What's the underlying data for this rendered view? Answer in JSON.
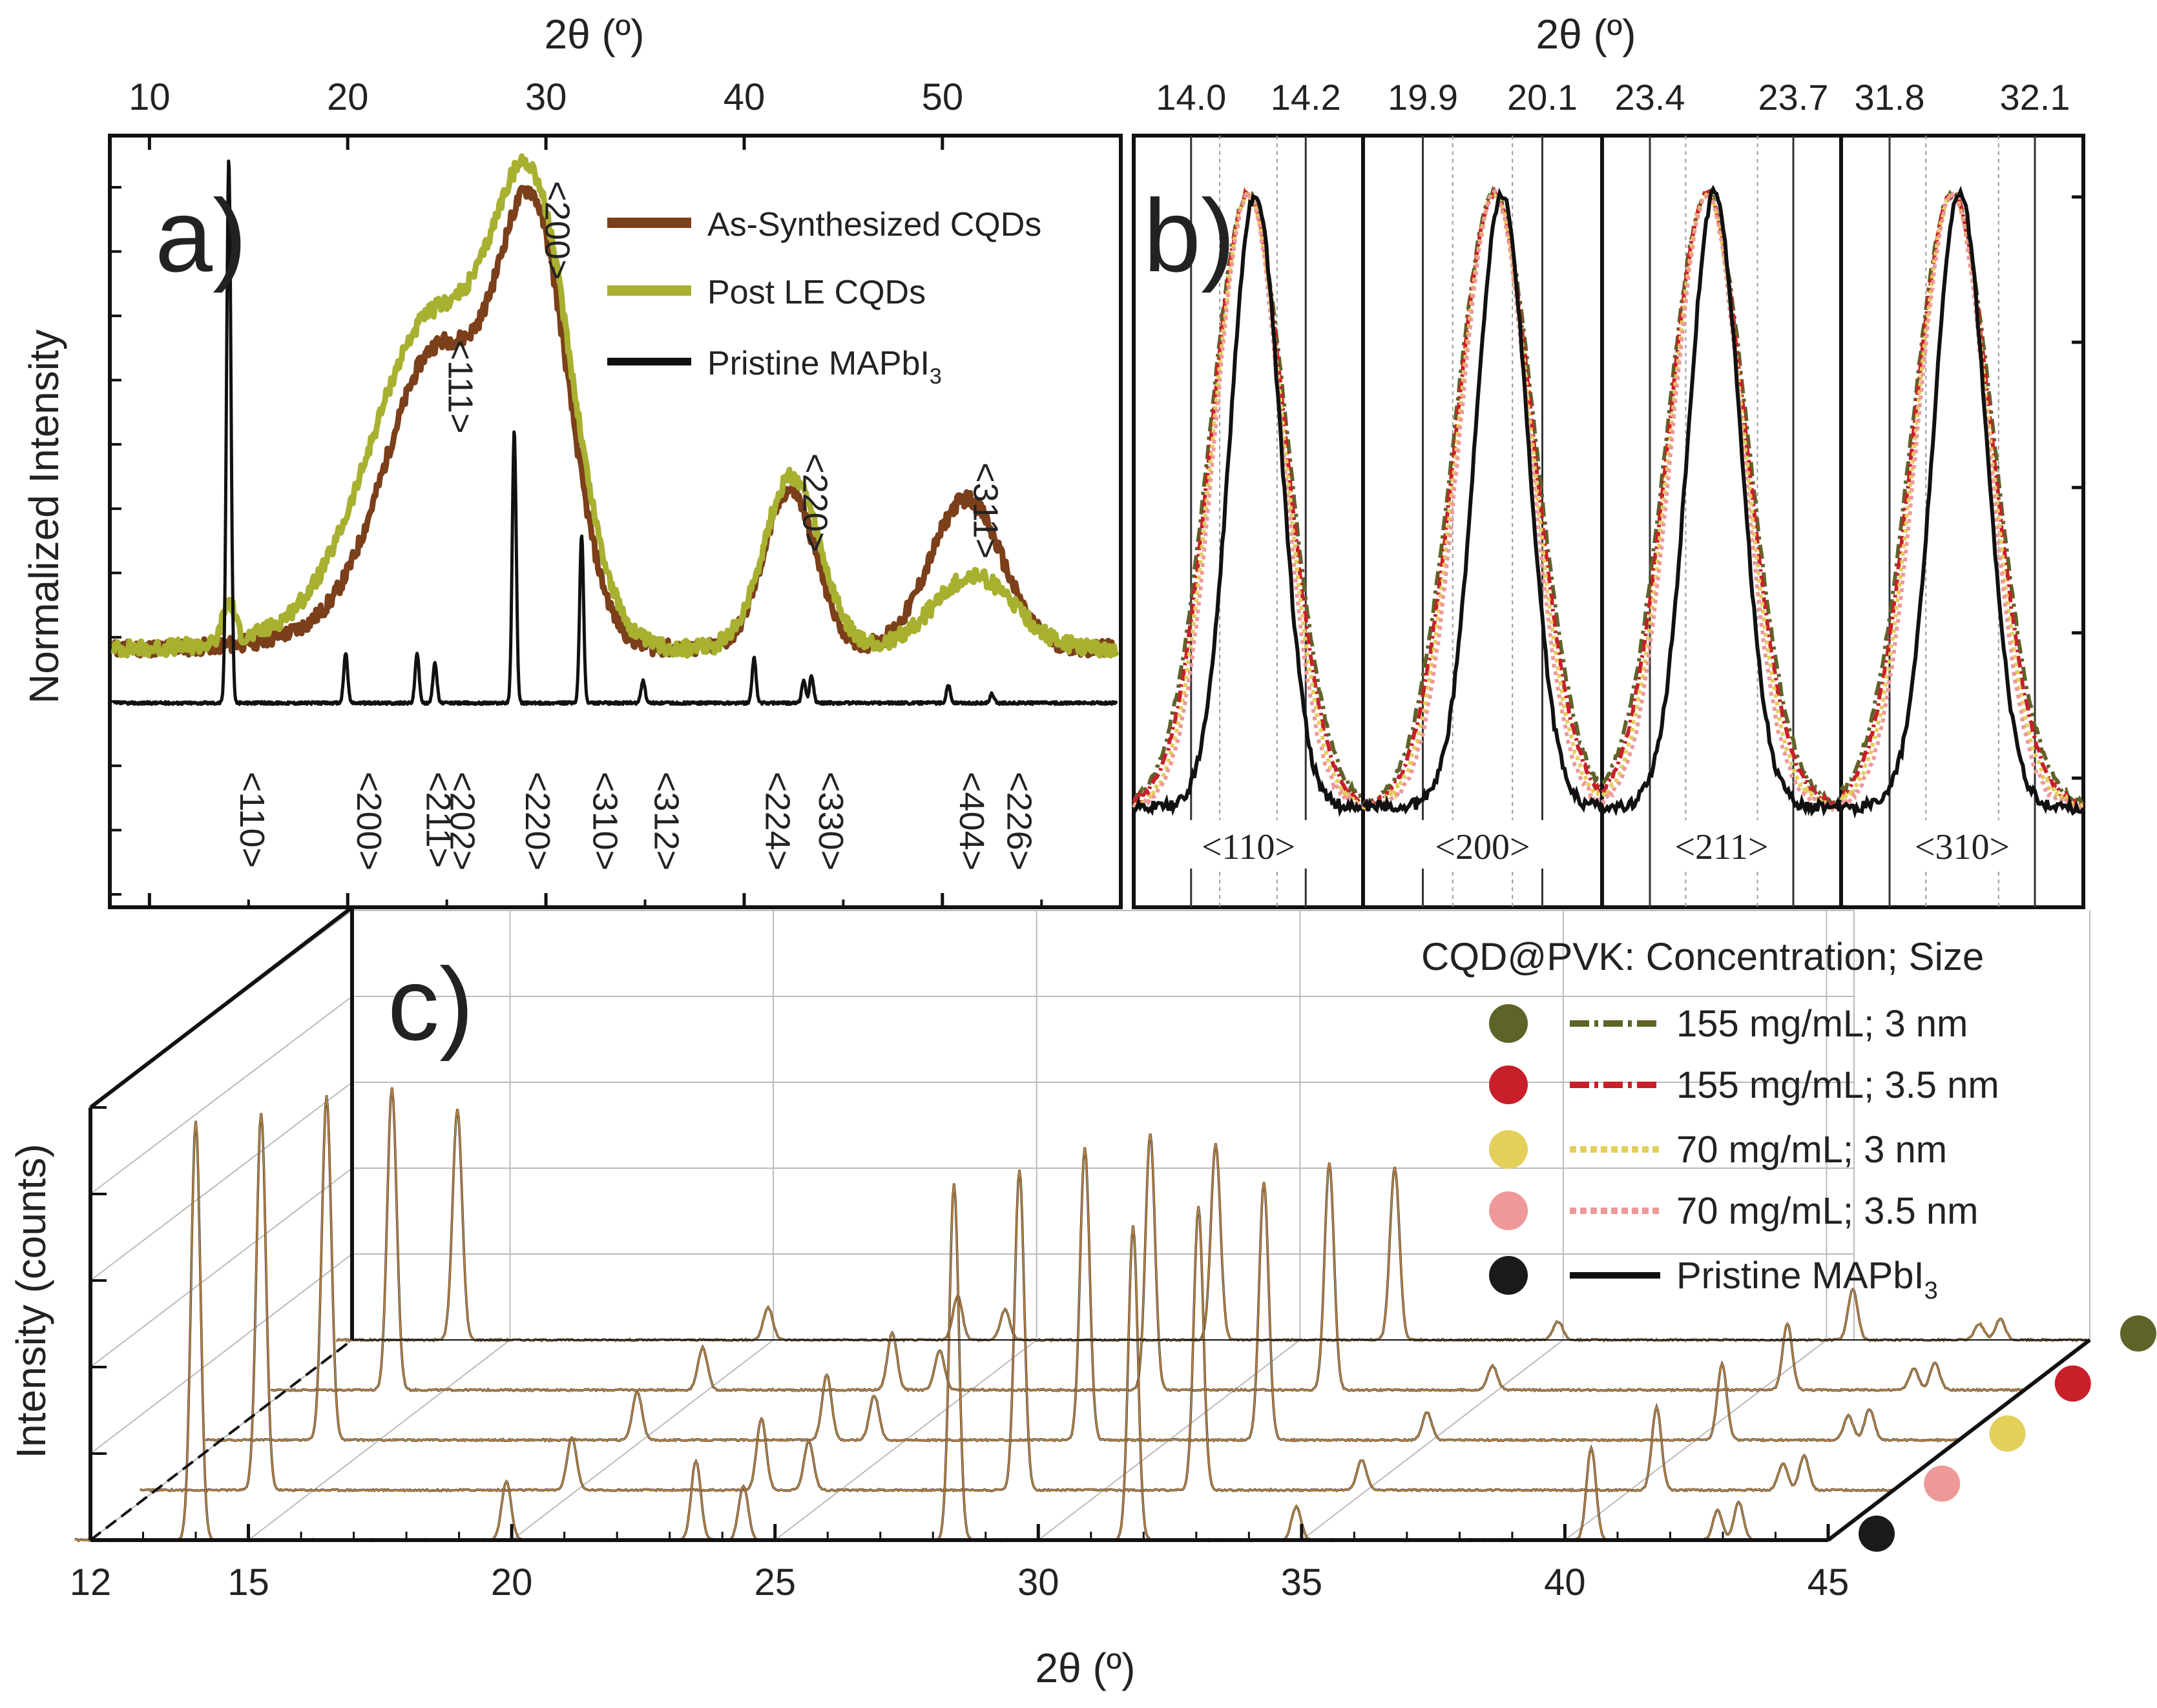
{
  "top_axis_title": "2θ (º)",
  "colors": {
    "as_synth": "#7B3F1A",
    "post_le": "#A8B030",
    "pristine": "#111111",
    "dot_155_3": "#5F6328",
    "dot_155_35": "#C81F2A",
    "dot_70_3": "#E3CF5A",
    "dot_70_35": "#EE9898",
    "dot_pristine": "#1A1A1A",
    "waterfall": "#C8904A"
  },
  "chart_data": [
    {
      "type": "line",
      "panel_label": "a)",
      "title": "",
      "xlabel": "2θ (º)",
      "ylabel": "Normalized Intensity",
      "xlim": [
        8,
        59
      ],
      "ylim": [
        -0.45,
        1.25
      ],
      "x_ticks": [
        "10",
        "20",
        "30",
        "40",
        "50"
      ],
      "legend": [
        {
          "label": "As-Synthesized CQDs",
          "key": "as_synth"
        },
        {
          "label": "Post LE CQDs",
          "key": "post_le"
        },
        {
          "label": "Pristine MAPbI",
          "sub": "3",
          "key": "pristine"
        }
      ],
      "series": [
        {
          "name": "As-Synthesized CQDs",
          "baseline": 0.12,
          "peaks": [
            [
              24.5,
              0.6,
              2.5
            ],
            [
              29.4,
              0.9,
              1.8
            ],
            [
              42.3,
              0.35,
              1.3
            ],
            [
              51.2,
              0.33,
              1.8
            ]
          ]
        },
        {
          "name": "Post LE CQDs",
          "baseline": 0.12,
          "peaks": [
            [
              14.0,
              0.09,
              0.3
            ],
            [
              24.3,
              0.62,
              2.9
            ],
            [
              29.4,
              0.9,
              2.0
            ],
            [
              42.4,
              0.38,
              1.4
            ],
            [
              51.6,
              0.16,
              2.0
            ]
          ]
        },
        {
          "name": "Pristine MAPbI3",
          "baseline": 0.0,
          "peaks": [
            [
              14.0,
              1.2,
              0.11
            ],
            [
              19.9,
              0.11,
              0.1
            ],
            [
              23.5,
              0.11,
              0.1
            ],
            [
              24.4,
              0.09,
              0.1
            ],
            [
              28.4,
              0.6,
              0.1
            ],
            [
              31.8,
              0.37,
              0.1
            ],
            [
              34.9,
              0.05,
              0.1
            ],
            [
              40.5,
              0.1,
              0.1
            ],
            [
              43.0,
              0.05,
              0.1
            ],
            [
              43.4,
              0.06,
              0.1
            ],
            [
              50.3,
              0.04,
              0.1
            ],
            [
              52.5,
              0.02,
              0.1
            ]
          ]
        }
      ],
      "peak_labels_top": [
        {
          "x": 24.5,
          "y": 0.8,
          "text": "<111>"
        },
        {
          "x": 29.4,
          "y": 1.15,
          "text": "<200>"
        },
        {
          "x": 42.4,
          "y": 0.55,
          "text": "<220>"
        },
        {
          "x": 51.0,
          "y": 0.53,
          "text": "<311>"
        }
      ],
      "peak_labels_bottom": [
        {
          "x": 14.0,
          "text": "<110>"
        },
        {
          "x": 19.9,
          "text": "<200>"
        },
        {
          "x": 23.4,
          "text": "<211>"
        },
        {
          "x": 24.6,
          "text": "<202>"
        },
        {
          "x": 28.4,
          "text": "<220>"
        },
        {
          "x": 31.8,
          "text": "<310>"
        },
        {
          "x": 34.9,
          "text": "<312>"
        },
        {
          "x": 40.5,
          "text": "<224>"
        },
        {
          "x": 43.2,
          "text": "<330>"
        },
        {
          "x": 50.3,
          "text": "<404>"
        },
        {
          "x": 52.7,
          "text": "<226>"
        }
      ]
    },
    {
      "type": "line",
      "panel_label": "b)",
      "xlabel": "2θ (º)",
      "ylabel": "",
      "subpanels": [
        {
          "label": "<110>",
          "tick_labels": [
            "14.0",
            "14.2"
          ],
          "xlim": [
            13.9,
            14.3
          ],
          "ticks": [
            14.0,
            14.2
          ],
          "center": 14.1
        },
        {
          "label": "<200>",
          "tick_labels": [
            "19.9",
            "20.1"
          ],
          "xlim": [
            19.8,
            20.2
          ],
          "ticks": [
            19.9,
            20.1
          ],
          "center": 20.02
        },
        {
          "label": "<211>",
          "tick_labels": [
            "23.4",
            "23.7"
          ],
          "xlim": [
            23.3,
            23.8
          ],
          "ticks": [
            23.4,
            23.7
          ],
          "center": 23.52
        },
        {
          "label": "<310>",
          "tick_labels": [
            "31.8",
            "32.1"
          ],
          "xlim": [
            31.7,
            32.2
          ],
          "ticks": [
            31.8,
            32.1
          ],
          "center": 31.93
        }
      ],
      "series": [
        {
          "name": "155 mg/mL; 3 nm",
          "style": "dash-dot",
          "key": "dot_155_3"
        },
        {
          "name": "155 mg/mL; 3.5 nm",
          "style": "dash-dot",
          "key": "dot_155_35"
        },
        {
          "name": "70 mg/mL; 3 nm",
          "style": "dotted",
          "key": "dot_70_3"
        },
        {
          "name": "70 mg/mL; 3.5 nm",
          "style": "dotted",
          "key": "dot_70_35"
        },
        {
          "name": "Pristine MAPbI3",
          "style": "solid",
          "key": "pristine"
        }
      ]
    },
    {
      "type": "line",
      "panel_label": "c)",
      "xlabel": "2θ (º)",
      "ylabel": "Intensity (counts)",
      "xlim": [
        12,
        45
      ],
      "x_ticks": [
        "12",
        "15",
        "20",
        "25",
        "30",
        "35",
        "40",
        "45"
      ],
      "legend_title": "CQD@PVK: Concentration; Size",
      "legend": [
        {
          "label": "155 mg/mL; 3 nm",
          "key": "dot_155_3",
          "style": "dash-dot"
        },
        {
          "label": "155 mg/mL; 3.5 nm",
          "key": "dot_155_35",
          "style": "dash-dot"
        },
        {
          "label": "70 mg/mL; 3 nm",
          "key": "dot_70_3",
          "style": "dotted"
        },
        {
          "label": "70 mg/mL; 3.5 nm",
          "key": "dot_70_35",
          "style": "dotted"
        },
        {
          "label": "Pristine MAPbI",
          "sub": "3",
          "key": "dot_pristine",
          "style": "solid"
        }
      ],
      "peaks": [
        [
          14.0,
          1.0
        ],
        [
          19.9,
          0.14
        ],
        [
          23.5,
          0.19
        ],
        [
          24.4,
          0.13
        ],
        [
          28.4,
          0.85
        ],
        [
          31.8,
          0.75
        ],
        [
          34.9,
          0.08
        ],
        [
          40.5,
          0.22
        ],
        [
          42.9,
          0.07
        ],
        [
          43.3,
          0.09
        ]
      ],
      "series": [
        {
          "name": "155 mg/mL; 3 nm",
          "scale": 0.55
        },
        {
          "name": "155 mg/mL; 3.5 nm",
          "scale": 0.72
        },
        {
          "name": "70 mg/mL; 3 nm",
          "scale": 0.82
        },
        {
          "name": "70 mg/mL; 3.5 nm",
          "scale": 0.9
        },
        {
          "name": "Pristine MAPbI3",
          "scale": 1.0
        }
      ]
    }
  ]
}
